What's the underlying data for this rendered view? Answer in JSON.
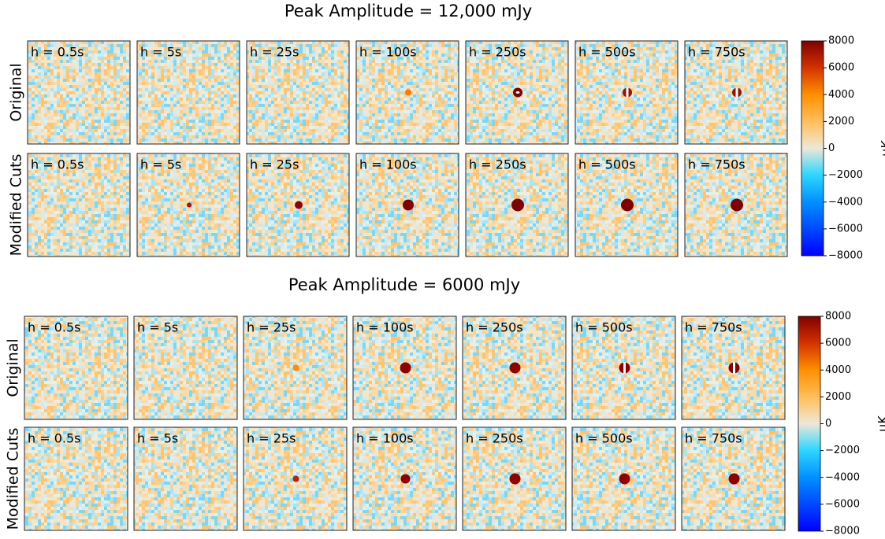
{
  "chart_data": [
    {
      "type": "image-grid",
      "title": "Peak Amplitude = 12,000 mJy",
      "row_labels": [
        "Original",
        "Modified Cuts"
      ],
      "col_labels": [
        "h = 0.5s",
        "h = 5s",
        "h = 25s",
        "h = 100s",
        "h = 250s",
        "h = 500s",
        "h = 750s"
      ],
      "colorbar_label": "μK",
      "clim": [
        -8000,
        8000
      ],
      "cticks": [
        {
          "value": -8000,
          "label": "−8000"
        },
        {
          "value": -6000,
          "label": "−6000"
        },
        {
          "value": -4000,
          "label": "−4000"
        },
        {
          "value": -2000,
          "label": "−2000"
        },
        0,
        2000,
        4000,
        6000,
        8000
      ]
    },
    {
      "type": "image-grid",
      "title": "Peak Amplitude = 6000 mJy",
      "row_labels": [
        "Original",
        "Modified Cuts"
      ],
      "col_labels": [
        "h = 0.5s",
        "h = 5s",
        "h = 25s",
        "h = 100s",
        "h = 250s",
        "h = 500s",
        "h = 750s"
      ],
      "colorbar_label": "μK",
      "clim": [
        -8000,
        8000
      ],
      "cticks": [
        {
          "value": -8000,
          "label": "−8000"
        },
        {
          "value": -6000,
          "label": "−6000"
        },
        {
          "value": -4000,
          "label": "−4000"
        },
        {
          "value": -2000,
          "label": "−2000"
        },
        0,
        2000,
        4000,
        6000,
        8000
      ]
    }
  ]
}
